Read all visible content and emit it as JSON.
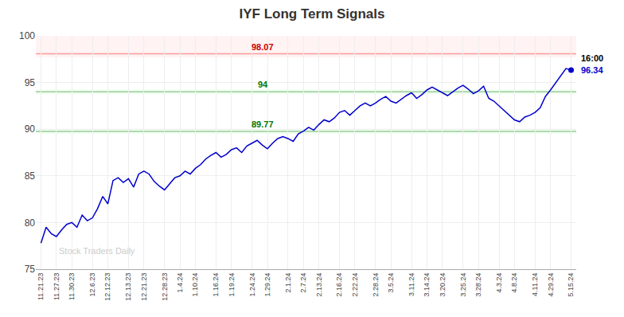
{
  "chart_data": {
    "type": "line",
    "title": "IYF Long Term Signals",
    "categories": [
      "11.21.23",
      null,
      null,
      "11.27.23",
      null,
      null,
      "11.30.23",
      null,
      null,
      null,
      "12.6.23",
      null,
      null,
      "12.12.23",
      null,
      null,
      null,
      "12.13.23",
      null,
      null,
      "12.21.23",
      null,
      null,
      null,
      "12.28.23",
      null,
      null,
      "1.4.24",
      null,
      null,
      "1.10.24",
      null,
      null,
      null,
      "1.16.24",
      null,
      null,
      "1.19.24",
      null,
      null,
      null,
      "1.24.24",
      null,
      null,
      "1.29.24",
      null,
      null,
      null,
      "2.1.24",
      null,
      null,
      "2.7.24",
      null,
      null,
      "2.13.24",
      null,
      null,
      null,
      "2.16.24",
      null,
      null,
      "2.22.24",
      null,
      null,
      null,
      "2.28.24",
      null,
      null,
      "3.5.24",
      null,
      null,
      null,
      "3.11.24",
      null,
      null,
      "3.14.24",
      null,
      null,
      "3.20.24",
      null,
      null,
      null,
      "3.25.24",
      null,
      null,
      "3.28.24",
      null,
      null,
      null,
      "4.3.24",
      null,
      null,
      "4.8.24",
      null,
      null,
      null,
      "4.11.24",
      null,
      null,
      "4.29.24",
      null,
      null,
      null,
      "5.15.24"
    ],
    "values": [
      77.8,
      79.5,
      78.8,
      78.5,
      79.2,
      79.8,
      80.0,
      79.5,
      80.8,
      80.2,
      80.5,
      81.5,
      82.8,
      82.0,
      84.5,
      84.8,
      84.3,
      84.7,
      83.8,
      85.2,
      85.5,
      85.2,
      84.4,
      83.9,
      83.5,
      84.2,
      84.8,
      85.0,
      85.5,
      85.2,
      85.8,
      86.2,
      86.8,
      87.2,
      87.5,
      87.0,
      87.3,
      87.8,
      88.0,
      87.5,
      88.2,
      88.5,
      88.8,
      88.3,
      87.9,
      88.5,
      89.0,
      89.2,
      89.0,
      88.7,
      89.5,
      89.8,
      90.2,
      89.9,
      90.5,
      91.0,
      90.8,
      91.2,
      91.8,
      92.0,
      91.5,
      92.0,
      92.5,
      92.8,
      92.5,
      92.8,
      93.2,
      93.5,
      93.0,
      92.8,
      93.2,
      93.6,
      93.9,
      93.3,
      93.7,
      94.2,
      94.5,
      94.2,
      93.9,
      93.6,
      94.0,
      94.4,
      94.7,
      94.3,
      93.8,
      94.1,
      94.6,
      93.3,
      93.0,
      92.5,
      92.0,
      91.5,
      91.0,
      90.8,
      91.3,
      91.5,
      91.8,
      92.3,
      93.5,
      94.2,
      95.0,
      95.8,
      96.5,
      96.34
    ],
    "color": "#0000cc",
    "ylim": [
      75,
      100
    ],
    "yticks": [
      75,
      80,
      85,
      90,
      95,
      100
    ],
    "grid": true,
    "reference_lines": [
      {
        "value": 98.07,
        "label": "98.07",
        "color": "#ff9999",
        "label_color": "#cc0000"
      },
      {
        "value": 94.0,
        "label": "94",
        "color": "#99cc99",
        "label_color": "#007700"
      },
      {
        "value": 89.77,
        "label": "89.77",
        "color": "#99cc99",
        "label_color": "#007700"
      }
    ],
    "bands": [
      {
        "from": 97.67,
        "to": 100,
        "color": "#ffeeee"
      },
      {
        "from": 93.7,
        "to": 94.3,
        "color": "#eeffee"
      },
      {
        "from": 89.47,
        "to": 90.07,
        "color": "#eeffee"
      }
    ],
    "last_point": {
      "value": 96.34,
      "label": "96.34",
      "time_label": "16:00",
      "color": "#0000cc",
      "line_color": "#888888"
    },
    "watermark": {
      "text": "Stock Traders Daily",
      "color": "#cccccc"
    }
  }
}
